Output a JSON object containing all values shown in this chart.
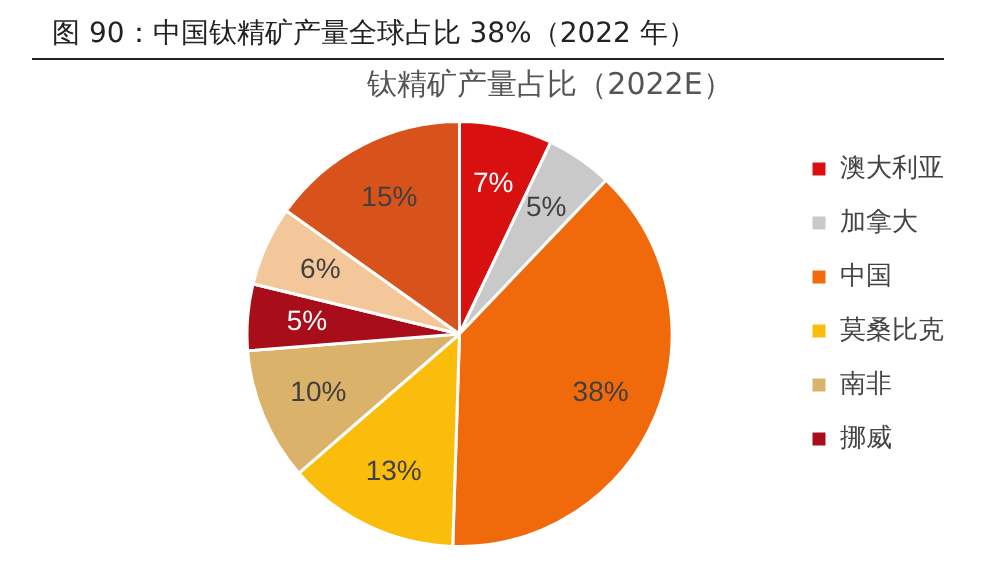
{
  "chart_data": {
    "type": "pie",
    "title": "钛精矿产量占比（2022E）",
    "annotations": [
      "图 90：中国钛精矿产量全球占比 38%（2022 年）"
    ],
    "categories": [
      "澳大利亚",
      "加拿大",
      "中国",
      "莫桑比克",
      "南非",
      "挪威",
      null,
      null
    ],
    "values": [
      7,
      5,
      38,
      13,
      10,
      5,
      6,
      15
    ],
    "value_labels": [
      "7%",
      "5%",
      "38%",
      "13%",
      "10%",
      "5%",
      "6%",
      "15%"
    ],
    "colors": [
      "#d91010",
      "#c9c9c9",
      "#f06a0c",
      "#fbbd0c",
      "#dbb26a",
      "#a80e1a",
      "#f3c79a",
      "#d8521c"
    ],
    "legend": "right"
  }
}
